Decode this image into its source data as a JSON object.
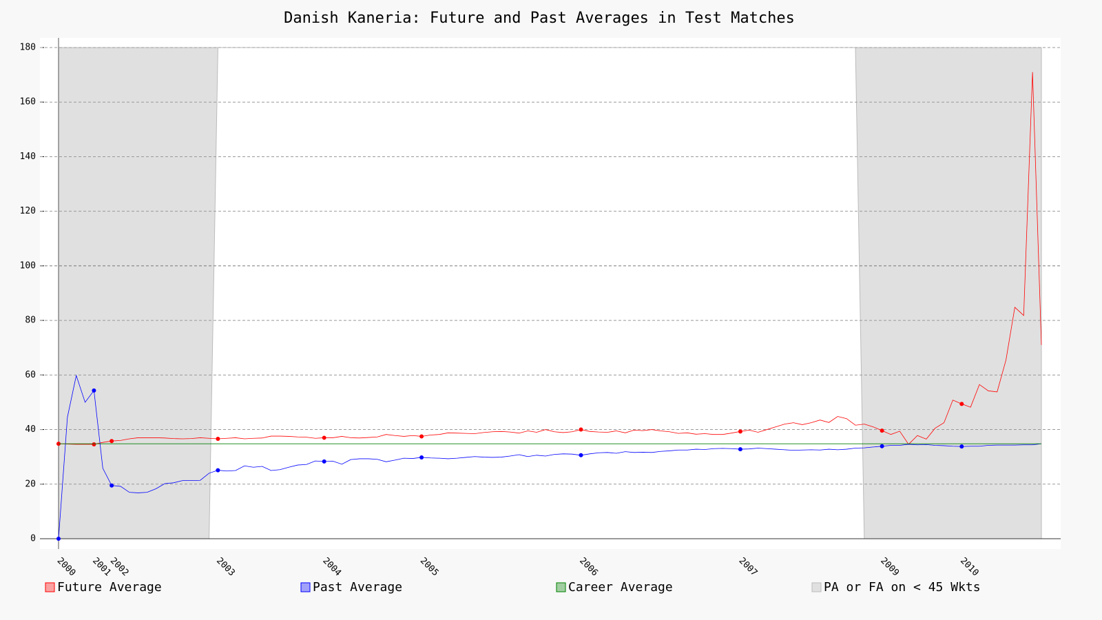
{
  "chart_data": {
    "type": "line",
    "title": "Danish Kaneria: Future and Past Averages in Test Matches",
    "categories": [
      "2000",
      null,
      null,
      null,
      "2001",
      null,
      "2002",
      null,
      null,
      null,
      null,
      null,
      null,
      null,
      null,
      null,
      null,
      null,
      "2003",
      null,
      null,
      null,
      null,
      null,
      null,
      null,
      null,
      null,
      null,
      null,
      "2004",
      null,
      null,
      null,
      null,
      null,
      null,
      null,
      null,
      null,
      null,
      "2005",
      null,
      null,
      null,
      null,
      null,
      null,
      null,
      null,
      null,
      null,
      null,
      null,
      null,
      null,
      null,
      null,
      null,
      "2006",
      null,
      null,
      null,
      null,
      null,
      null,
      null,
      null,
      null,
      null,
      null,
      null,
      null,
      null,
      null,
      null,
      null,
      "2007",
      null,
      null,
      null,
      null,
      null,
      null,
      null,
      null,
      null,
      null,
      null,
      null,
      null,
      null,
      null,
      "2009",
      null,
      null,
      null,
      null,
      null,
      null,
      null,
      null,
      "2010",
      null,
      null,
      null,
      null,
      null,
      null,
      null,
      null,
      null
    ],
    "series": [
      {
        "name": "Future Average",
        "color": "#ff0000",
        "values": [
          34.8,
          34.7,
          34.6,
          34.6,
          34.6,
          35.3,
          35.8,
          36.0,
          36.6,
          37.0,
          37.0,
          37.0,
          36.9,
          36.7,
          36.6,
          36.7,
          37.0,
          36.8,
          36.6,
          36.8,
          37.0,
          36.6,
          36.8,
          36.9,
          37.6,
          37.6,
          37.5,
          37.3,
          37.2,
          36.8,
          37.0,
          37.0,
          37.5,
          37.0,
          36.9,
          37.1,
          37.3,
          38.2,
          37.8,
          37.5,
          37.8,
          37.5,
          38.0,
          38.2,
          38.8,
          38.7,
          38.6,
          38.5,
          38.9,
          39.2,
          39.3,
          39.1,
          38.7,
          39.5,
          39.0,
          40.0,
          39.2,
          38.9,
          39.2,
          40.0,
          39.3,
          39.1,
          39.0,
          39.5,
          38.8,
          39.8,
          39.6,
          40.0,
          39.5,
          39.2,
          38.6,
          38.8,
          38.3,
          38.5,
          38.2,
          38.2,
          38.7,
          39.3,
          39.8,
          39.0,
          40.0,
          41.0,
          42.0,
          42.5,
          41.8,
          42.5,
          43.5,
          42.6,
          44.8,
          44.0,
          41.6,
          42.0,
          41.0,
          39.6,
          38.2,
          39.4,
          34.6,
          37.8,
          36.5,
          40.5,
          42.5,
          50.8,
          49.4,
          48.2,
          56.5,
          54.2,
          53.8,
          65.5,
          84.8,
          81.8,
          171.0,
          71.0
        ]
      },
      {
        "name": "Past Average",
        "color": "#0000ff",
        "values": [
          0,
          44.5,
          59.8,
          50.0,
          54.3,
          25.8,
          19.5,
          19.2,
          17.0,
          16.8,
          17.0,
          18.3,
          20.2,
          20.5,
          21.3,
          21.3,
          21.4,
          24.0,
          25.1,
          24.8,
          25.0,
          26.7,
          26.2,
          26.5,
          25.0,
          25.3,
          26.2,
          27.0,
          27.2,
          28.5,
          28.3,
          28.4,
          27.3,
          29.0,
          29.3,
          29.3,
          29.1,
          28.2,
          28.8,
          29.5,
          29.4,
          29.8,
          29.6,
          29.5,
          29.3,
          29.5,
          29.8,
          30.1,
          29.9,
          29.8,
          29.9,
          30.3,
          30.8,
          30.1,
          30.6,
          30.3,
          30.9,
          31.1,
          31.0,
          30.6,
          31.1,
          31.5,
          31.6,
          31.3,
          31.9,
          31.6,
          31.7,
          31.6,
          32.0,
          32.2,
          32.5,
          32.5,
          32.8,
          32.7,
          33.0,
          33.1,
          33.0,
          32.8,
          32.9,
          33.2,
          33.0,
          32.8,
          32.6,
          32.4,
          32.5,
          32.6,
          32.5,
          32.8,
          32.6,
          32.8,
          33.2,
          33.3,
          33.6,
          33.9,
          34.2,
          34.2,
          34.6,
          34.4,
          34.5,
          34.2,
          34.1,
          33.9,
          33.8,
          33.9,
          33.9,
          34.2,
          34.3,
          34.3,
          34.3,
          34.4,
          34.4,
          34.8
        ]
      },
      {
        "name": "Career Average",
        "color": "#008000",
        "value": 34.79
      },
      {
        "name": "PA or FA on < 45 Wkts",
        "color": "#e0e0e0",
        "values": [
          0,
          0,
          0,
          0,
          0,
          0,
          0,
          0,
          0,
          0,
          0,
          0,
          0,
          0,
          0,
          0,
          0,
          0,
          180,
          180,
          180,
          180,
          180,
          180,
          180,
          180,
          180,
          180,
          180,
          180,
          180,
          180,
          180,
          180,
          180,
          180,
          180,
          180,
          180,
          180,
          180,
          180,
          180,
          180,
          180,
          180,
          180,
          180,
          180,
          180,
          180,
          180,
          180,
          180,
          180,
          180,
          180,
          180,
          180,
          180,
          180,
          180,
          180,
          180,
          180,
          180,
          180,
          180,
          180,
          180,
          180,
          180,
          180,
          180,
          180,
          180,
          180,
          180,
          180,
          180,
          180,
          180,
          180,
          180,
          180,
          180,
          180,
          180,
          180,
          180,
          180,
          0,
          0,
          0,
          0,
          0,
          0,
          0,
          0,
          0,
          0,
          0,
          0,
          0,
          0,
          0,
          0,
          0,
          0,
          0,
          0,
          0
        ]
      }
    ],
    "ylim": [
      0,
      180
    ],
    "yticks": [
      0,
      20,
      40,
      60,
      80,
      100,
      120,
      140,
      160,
      180
    ],
    "grid": true
  }
}
